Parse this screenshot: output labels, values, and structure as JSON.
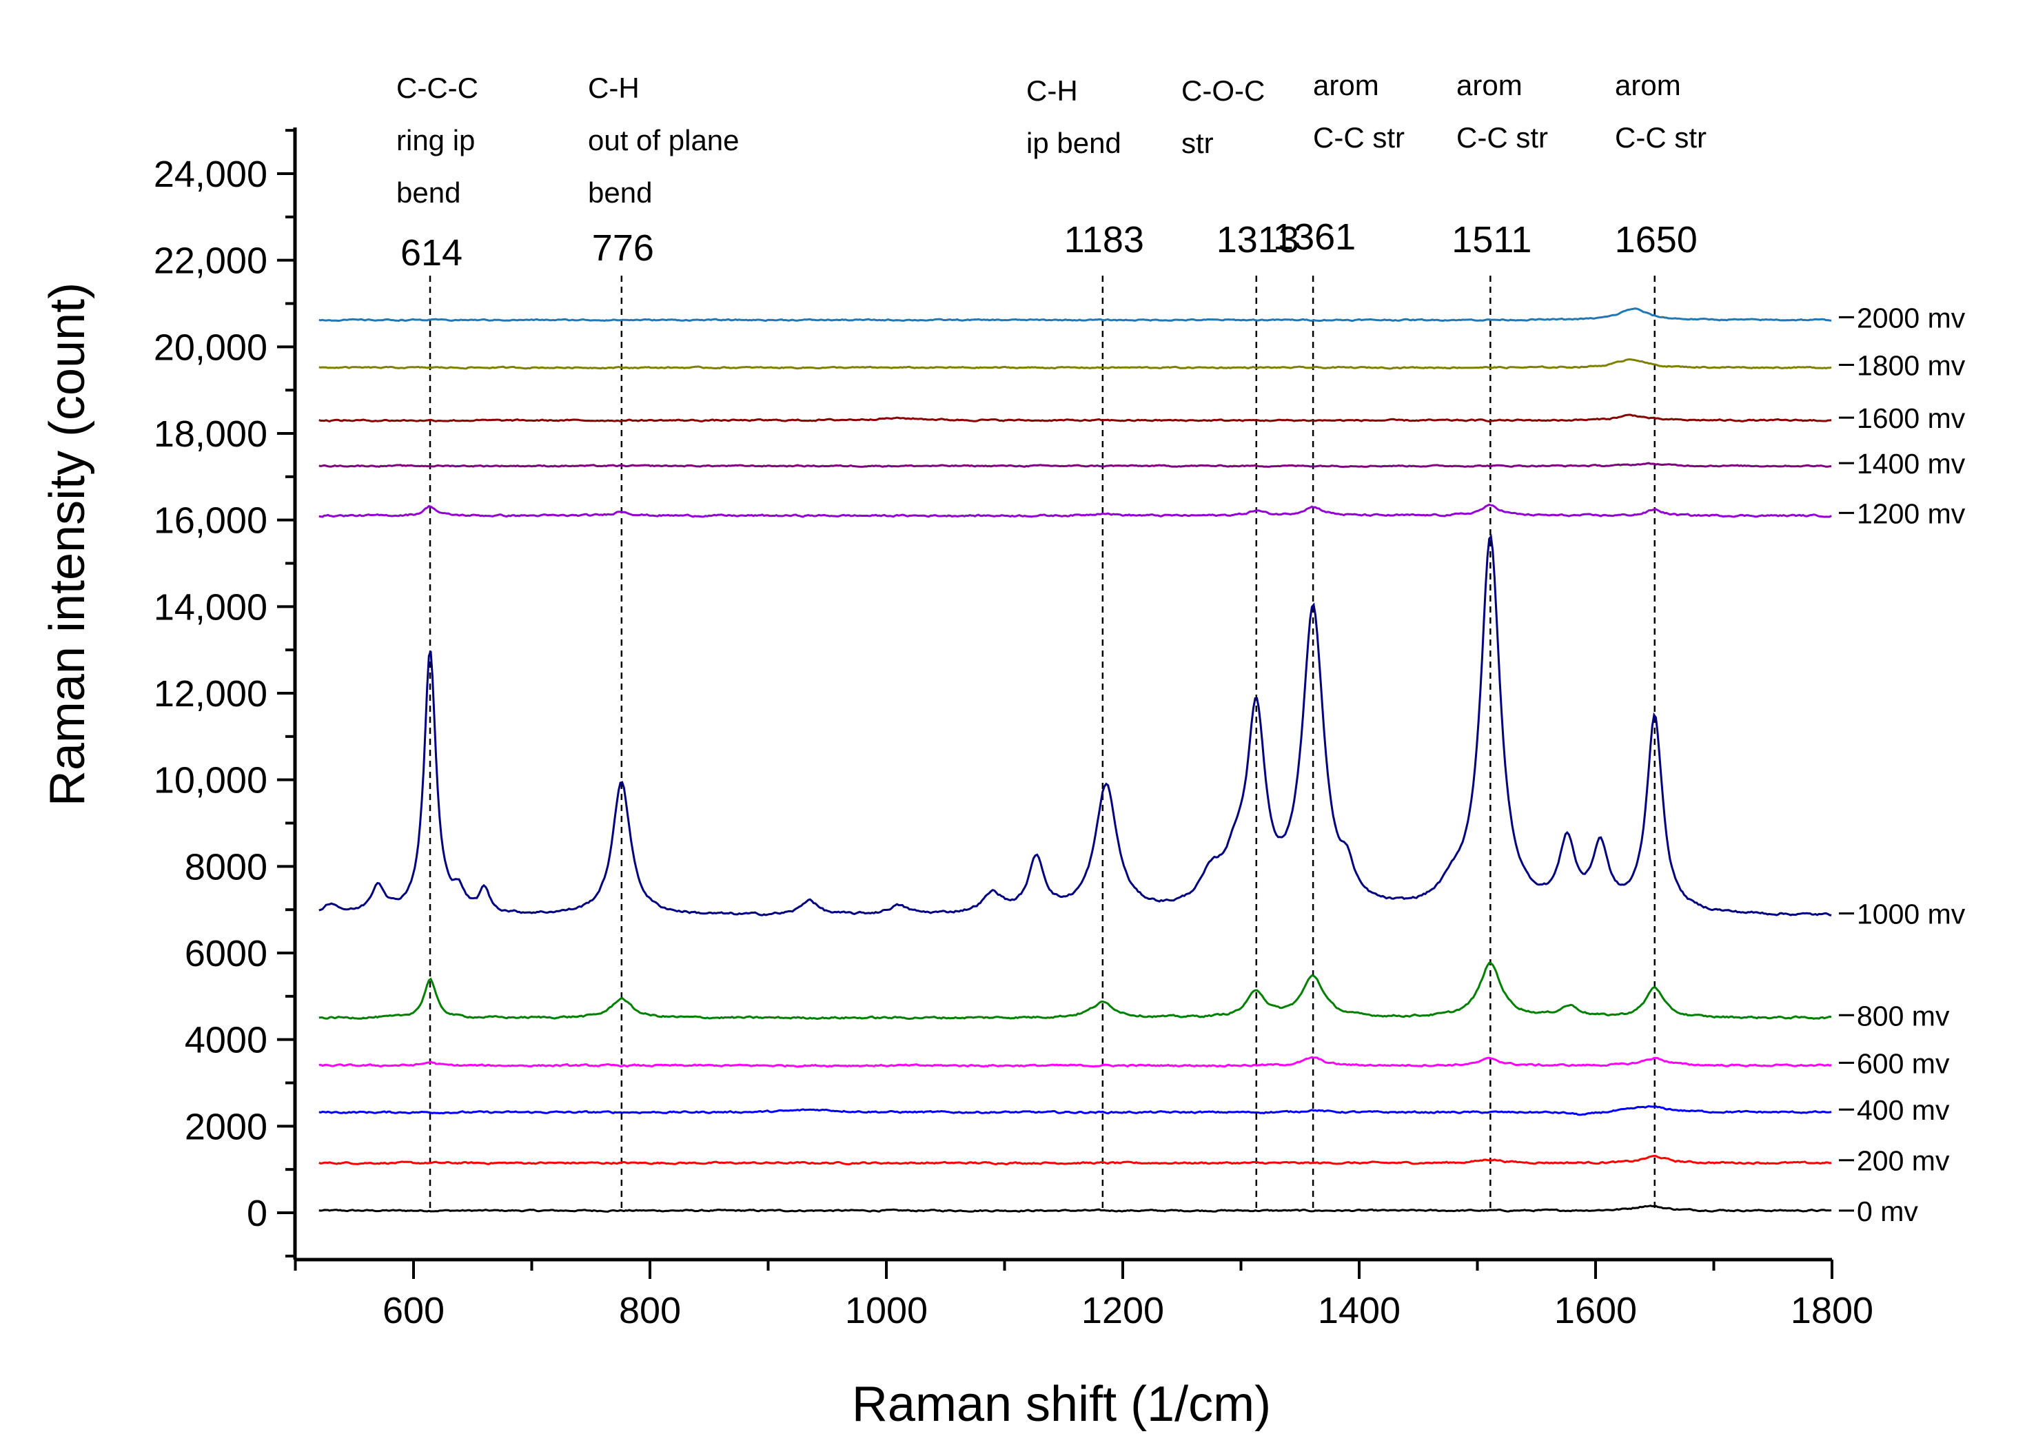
{
  "chart_data": {
    "type": "line",
    "title": "",
    "xlabel": "Raman shift (1/cm)",
    "ylabel": "Raman intensity (count)",
    "xlim": [
      510,
      1800
    ],
    "ylim": [
      -1000,
      25000
    ],
    "x_ticks": [
      600,
      800,
      1000,
      1200,
      1400,
      1600,
      1800
    ],
    "y_ticks": [
      {
        "value": 0,
        "label": "0"
      },
      {
        "value": 2000,
        "label": "2000"
      },
      {
        "value": 4000,
        "label": "4000"
      },
      {
        "value": 6000,
        "label": "6000"
      },
      {
        "value": 8000,
        "label": "8000"
      },
      {
        "value": 10000,
        "label": "10,000"
      },
      {
        "value": 12000,
        "label": "12,000"
      },
      {
        "value": 14000,
        "label": "14,000"
      },
      {
        "value": 16000,
        "label": "16,000"
      },
      {
        "value": 18000,
        "label": "18,000"
      },
      {
        "value": 20000,
        "label": "20,000"
      },
      {
        "value": 22000,
        "label": "22,000"
      },
      {
        "value": 24000,
        "label": "24,000"
      }
    ],
    "grid": false,
    "reference_lines": [
      {
        "x": 614,
        "label": "614",
        "assignment": [
          "C-C-C",
          "ring ip",
          "bend"
        ]
      },
      {
        "x": 776,
        "label": "776",
        "assignment": [
          "C-H",
          "out of plane",
          "bend"
        ]
      },
      {
        "x": 1183,
        "label": "1183",
        "assignment": [
          "C-H",
          "ip bend"
        ]
      },
      {
        "x": 1313,
        "label": "1313",
        "assignment": [
          "C-O-C",
          "str"
        ]
      },
      {
        "x": 1361,
        "label": "1361",
        "assignment": [
          "arom",
          "C-C str"
        ]
      },
      {
        "x": 1511,
        "label": "1511",
        "assignment": [
          "arom",
          "C-C str"
        ]
      },
      {
        "x": 1650,
        "label": "1650",
        "assignment": [
          "arom",
          "C-C str"
        ]
      }
    ],
    "series": [
      {
        "name": "0 mv",
        "color": "#000000",
        "baseline": 50,
        "noise": 35,
        "peaks": [
          [
            1645,
            110,
            15
          ]
        ]
      },
      {
        "name": "200 mv",
        "color": "#ff0000",
        "baseline": 1150,
        "noise": 40,
        "peaks": [
          [
            1511,
            80,
            12
          ],
          [
            1650,
            150,
            12
          ]
        ]
      },
      {
        "name": "400 mv",
        "color": "#0000ff",
        "baseline": 2320,
        "noise": 40,
        "peaks": [
          [
            940,
            60,
            25
          ],
          [
            1361,
            50,
            10
          ],
          [
            1645,
            130,
            20
          ],
          [
            1590,
            -70,
            12
          ]
        ]
      },
      {
        "name": "600 mv",
        "color": "#ff00ff",
        "baseline": 3400,
        "noise": 40,
        "peaks": [
          [
            614,
            80,
            6
          ],
          [
            1361,
            180,
            10
          ],
          [
            1511,
            160,
            10
          ],
          [
            1650,
            170,
            12
          ]
        ]
      },
      {
        "name": "800 mv",
        "color": "#008000",
        "baseline": 4500,
        "noise": 45,
        "peaks": [
          [
            614,
            900,
            6
          ],
          [
            776,
            450,
            10
          ],
          [
            1183,
            350,
            12
          ],
          [
            1313,
            600,
            9
          ],
          [
            1361,
            950,
            11
          ],
          [
            1511,
            1250,
            11
          ],
          [
            1578,
            250,
            10
          ],
          [
            1650,
            700,
            9
          ]
        ]
      },
      {
        "name": "1000 mv",
        "color": "#000080",
        "baseline": 6850,
        "noise": 55,
        "peaks": [
          [
            530,
            250,
            8
          ],
          [
            570,
            650,
            7
          ],
          [
            614,
            6100,
            6
          ],
          [
            638,
            450,
            6
          ],
          [
            660,
            550,
            5
          ],
          [
            776,
            3100,
            9
          ],
          [
            935,
            350,
            8
          ],
          [
            1010,
            200,
            10
          ],
          [
            1090,
            450,
            10
          ],
          [
            1127,
            1250,
            8
          ],
          [
            1186,
            2950,
            11
          ],
          [
            1275,
            650,
            12
          ],
          [
            1296,
            900,
            12
          ],
          [
            1313,
            4300,
            9
          ],
          [
            1361,
            6900,
            11
          ],
          [
            1390,
            600,
            6
          ],
          [
            1480,
            400,
            14
          ],
          [
            1511,
            8600,
            10
          ],
          [
            1576,
            1550,
            8
          ],
          [
            1604,
            1450,
            8
          ],
          [
            1650,
            4550,
            8
          ]
        ]
      },
      {
        "name": "1200 mv",
        "color": "#9400d3",
        "baseline": 16100,
        "noise": 40,
        "peaks": [
          [
            614,
            220,
            6
          ],
          [
            776,
            100,
            8
          ],
          [
            1183,
            60,
            10
          ],
          [
            1313,
            110,
            8
          ],
          [
            1361,
            200,
            10
          ],
          [
            1511,
            230,
            10
          ],
          [
            1650,
            140,
            8
          ]
        ]
      },
      {
        "name": "1400 mv",
        "color": "#800080",
        "baseline": 17250,
        "noise": 30,
        "peaks": [
          [
            1645,
            50,
            15
          ]
        ]
      },
      {
        "name": "1600 mv",
        "color": "#8b0000",
        "baseline": 18300,
        "noise": 35,
        "peaks": [
          [
            1010,
            50,
            30
          ],
          [
            1630,
            120,
            14
          ]
        ]
      },
      {
        "name": "1800 mv",
        "color": "#808000",
        "baseline": 19520,
        "noise": 30,
        "peaks": [
          [
            1630,
            200,
            14
          ]
        ]
      },
      {
        "name": "2000 mv",
        "color": "#1f77b4",
        "baseline": 20620,
        "noise": 30,
        "peaks": [
          [
            1632,
            260,
            14
          ]
        ]
      }
    ]
  }
}
